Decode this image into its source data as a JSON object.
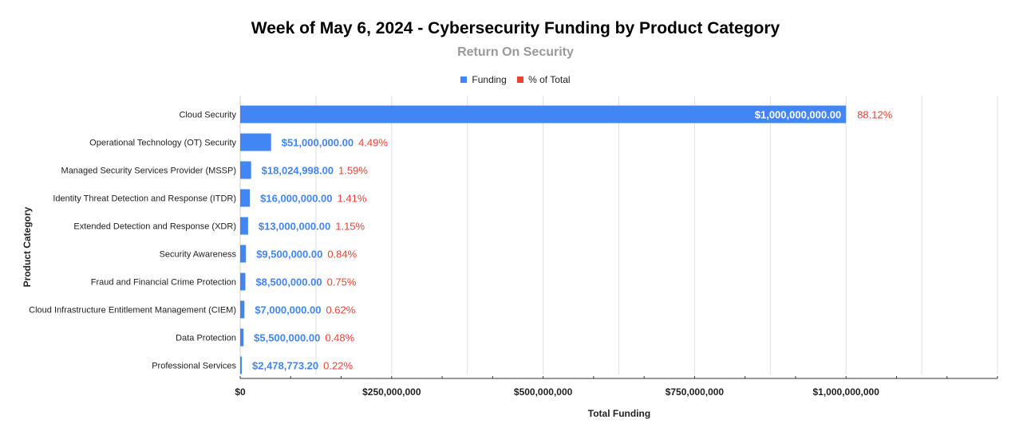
{
  "chart_data": {
    "type": "bar",
    "orientation": "horizontal",
    "title": "Week of May 6, 2024 - Cybersecurity Funding by Product Category",
    "subtitle": "Return On Security",
    "xlabel": "Total Funding",
    "ylabel": "Product Category",
    "xlim": [
      0,
      1250000000
    ],
    "xticks": [
      0,
      250000000,
      500000000,
      750000000,
      1000000000
    ],
    "xtick_labels": [
      "$0",
      "$250,000,000",
      "$500,000,000",
      "$750,000,000",
      "$1,000,000,000"
    ],
    "legend": [
      {
        "name": "Funding",
        "color": "#4285f4"
      },
      {
        "name": "% of Total",
        "color": "#ea4335"
      }
    ],
    "legend_position": "top",
    "categories": [
      "Cloud Security",
      "Operational Technology (OT) Security",
      "Managed Security Services Provider (MSSP)",
      "Identity Threat Detection and Response (ITDR)",
      "Extended Detection and Response (XDR)",
      "Security Awareness",
      "Fraud and Financial Crime Protection",
      "Cloud Infrastructure Entitlement Management (CIEM)",
      "Data Protection",
      "Professional Services"
    ],
    "series": [
      {
        "name": "Funding",
        "values": [
          1000000000,
          51000000,
          18024998,
          16000000,
          13000000,
          9500000,
          8500000,
          7000000,
          5500000,
          2478773.2
        ],
        "labels": [
          "$1,000,000,000.00",
          "$51,000,000.00",
          "$18,024,998.00",
          "$16,000,000.00",
          "$13,000,000.00",
          "$9,500,000.00",
          "$8,500,000.00",
          "$7,000,000.00",
          "$5,500,000.00",
          "$2,478,773.20"
        ]
      },
      {
        "name": "% of Total",
        "values": [
          88.12,
          4.49,
          1.59,
          1.41,
          1.15,
          0.84,
          0.75,
          0.62,
          0.48,
          0.22
        ],
        "labels": [
          "88.12%",
          "4.49%",
          "1.59%",
          "1.41%",
          "1.15%",
          "0.84%",
          "0.75%",
          "0.62%",
          "0.48%",
          "0.22%"
        ]
      }
    ]
  }
}
